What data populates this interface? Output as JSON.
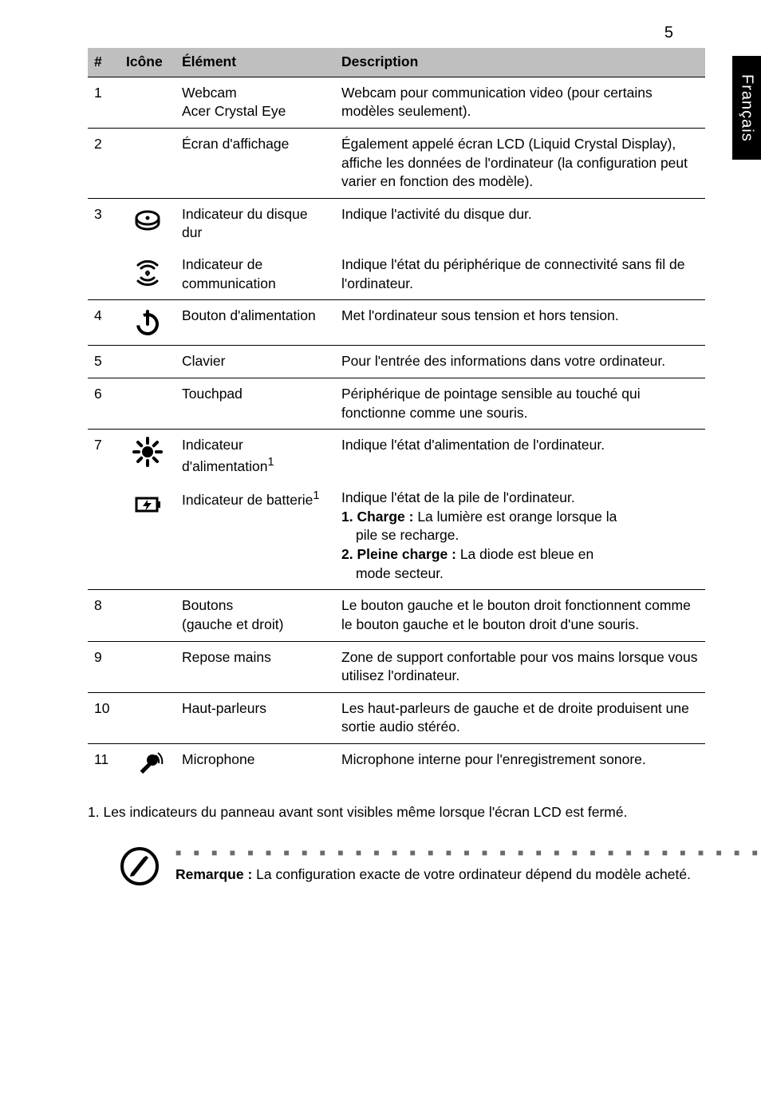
{
  "page_number": "5",
  "side_tab": "Français",
  "columns": {
    "num": "#",
    "icon": "Icône",
    "elem": "Élément",
    "desc": "Description"
  },
  "rows": [
    {
      "n": "1",
      "icon": null,
      "elem": "Webcam\nAcer Crystal Eye",
      "desc": "Webcam pour communication video (pour certains modèles seulement).",
      "sep": true
    },
    {
      "n": "2",
      "icon": null,
      "elem": "Écran d'affichage",
      "desc": "Également appelé écran LCD (Liquid Crystal Display), affiche les données de l'ordinateur (la configuration peut varier en fonction des modèle).",
      "sep": true
    },
    {
      "n": "3",
      "icon": "hdd",
      "elem": "Indicateur du disque dur",
      "desc": "Indique l'activité du disque dur.",
      "sep": true
    },
    {
      "n": "",
      "icon": "wifi",
      "elem": "Indicateur de communication",
      "desc": "Indique l'état du périphérique de connectivité sans fil de l'ordinateur.",
      "sep": false
    },
    {
      "n": "4",
      "icon": "power",
      "elem": "Bouton d'alimentation",
      "desc": "Met l'ordinateur sous tension et hors tension.",
      "sep": true
    },
    {
      "n": "5",
      "icon": null,
      "elem": "Clavier",
      "desc": "Pour l'entrée des informations dans votre ordinateur.",
      "sep": true
    },
    {
      "n": "6",
      "icon": null,
      "elem": "Touchpad",
      "desc": "Périphérique de pointage sensible au touché qui fonctionne comme une souris.",
      "sep": true
    },
    {
      "n": "7",
      "icon": "sun",
      "elem": "Indicateur d'alimentation",
      "sup": "1",
      "desc": "Indique l'état d'alimentation de l'ordinateur.",
      "sep": true
    },
    {
      "n": "",
      "icon": "battery",
      "elem": "Indicateur de batterie",
      "sup": "1",
      "desc_lines": [
        "Indique l'état de la pile de l'ordinateur.",
        {
          "bold": "1. Charge :",
          "text": " La lumière est orange lorsque la",
          "indent_next": "pile se recharge."
        },
        {
          "bold": "2. Pleine charge :",
          "text": " La diode est bleue en",
          "indent_next": "mode secteur."
        }
      ],
      "sep": false
    },
    {
      "n": "8",
      "icon": null,
      "elem": "Boutons\n(gauche et droit)",
      "desc": "Le bouton gauche et le bouton droit fonctionnent comme le bouton gauche et le bouton droit d'une souris.",
      "sep": true
    },
    {
      "n": "9",
      "icon": null,
      "elem": "Repose mains",
      "desc": "Zone de support confortable pour vos mains lorsque vous utilisez l'ordinateur.",
      "sep": true
    },
    {
      "n": "10",
      "icon": null,
      "elem": "Haut-parleurs",
      "desc": "Les haut-parleurs de gauche et de droite produisent une sortie audio stéréo.",
      "sep": true
    },
    {
      "n": "11",
      "icon": "mic",
      "elem": "Microphone",
      "desc": "Microphone interne pour l'enregistrement sonore.",
      "sep": true
    }
  ],
  "footnote": "1. Les indicateurs du panneau avant sont visibles même lorsque l'écran LCD est fermé.",
  "note": {
    "label": "Remarque :",
    "text": " La configuration exacte de votre ordinateur dépend du modèle acheté."
  },
  "colors": {
    "header_bg": "#bfbfbf",
    "text": "#000000",
    "dots": "#6a6a6a"
  }
}
